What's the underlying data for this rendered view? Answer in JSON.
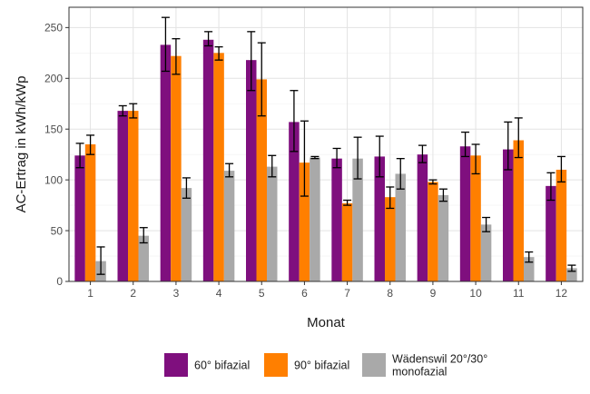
{
  "chart_data": {
    "type": "bar",
    "xlabel": "Monat",
    "ylabel": "AC-Ertrag in kWh/kWp",
    "ylim": [
      0,
      270
    ],
    "yticks": [
      0,
      50,
      100,
      150,
      200,
      250
    ],
    "grid": true,
    "legend_position": "bottom",
    "categories": [
      "1",
      "2",
      "3",
      "4",
      "5",
      "6",
      "7",
      "8",
      "9",
      "10",
      "11",
      "12"
    ],
    "series": [
      {
        "name": "60° bifazial",
        "color": "#7f0f7e",
        "values": [
          124,
          168,
          233,
          238,
          218,
          157,
          121,
          123,
          125,
          133,
          130,
          94
        ],
        "error_low": [
          112,
          163,
          207,
          232,
          188,
          128,
          112,
          103,
          117,
          123,
          110,
          80
        ],
        "error_high": [
          136,
          173,
          260,
          246,
          246,
          188,
          131,
          143,
          134,
          147,
          157,
          107
        ]
      },
      {
        "name": "90° bifazial",
        "color": "#ff7f00",
        "values": [
          135,
          168,
          222,
          225,
          199,
          117,
          77,
          83,
          98,
          124,
          139,
          110
        ],
        "error_low": [
          125,
          161,
          204,
          218,
          163,
          84,
          75,
          72,
          96,
          106,
          122,
          98
        ],
        "error_high": [
          144,
          175,
          239,
          231,
          235,
          158,
          80,
          93,
          100,
          135,
          161,
          123
        ]
      },
      {
        "name": "Wädenswil 20°/30° monofazial",
        "label_lines": [
          "Wädenswil 20°/30°",
          "monofazial"
        ],
        "color": "#a9a9a9",
        "values": [
          20,
          45,
          92,
          109,
          113,
          122,
          121,
          106,
          85,
          56,
          24,
          13
        ],
        "error_low": [
          7,
          38,
          82,
          103,
          103,
          121,
          101,
          91,
          79,
          49,
          19,
          10
        ],
        "error_high": [
          34,
          53,
          102,
          116,
          124,
          123,
          142,
          121,
          91,
          63,
          29,
          16
        ]
      }
    ]
  }
}
